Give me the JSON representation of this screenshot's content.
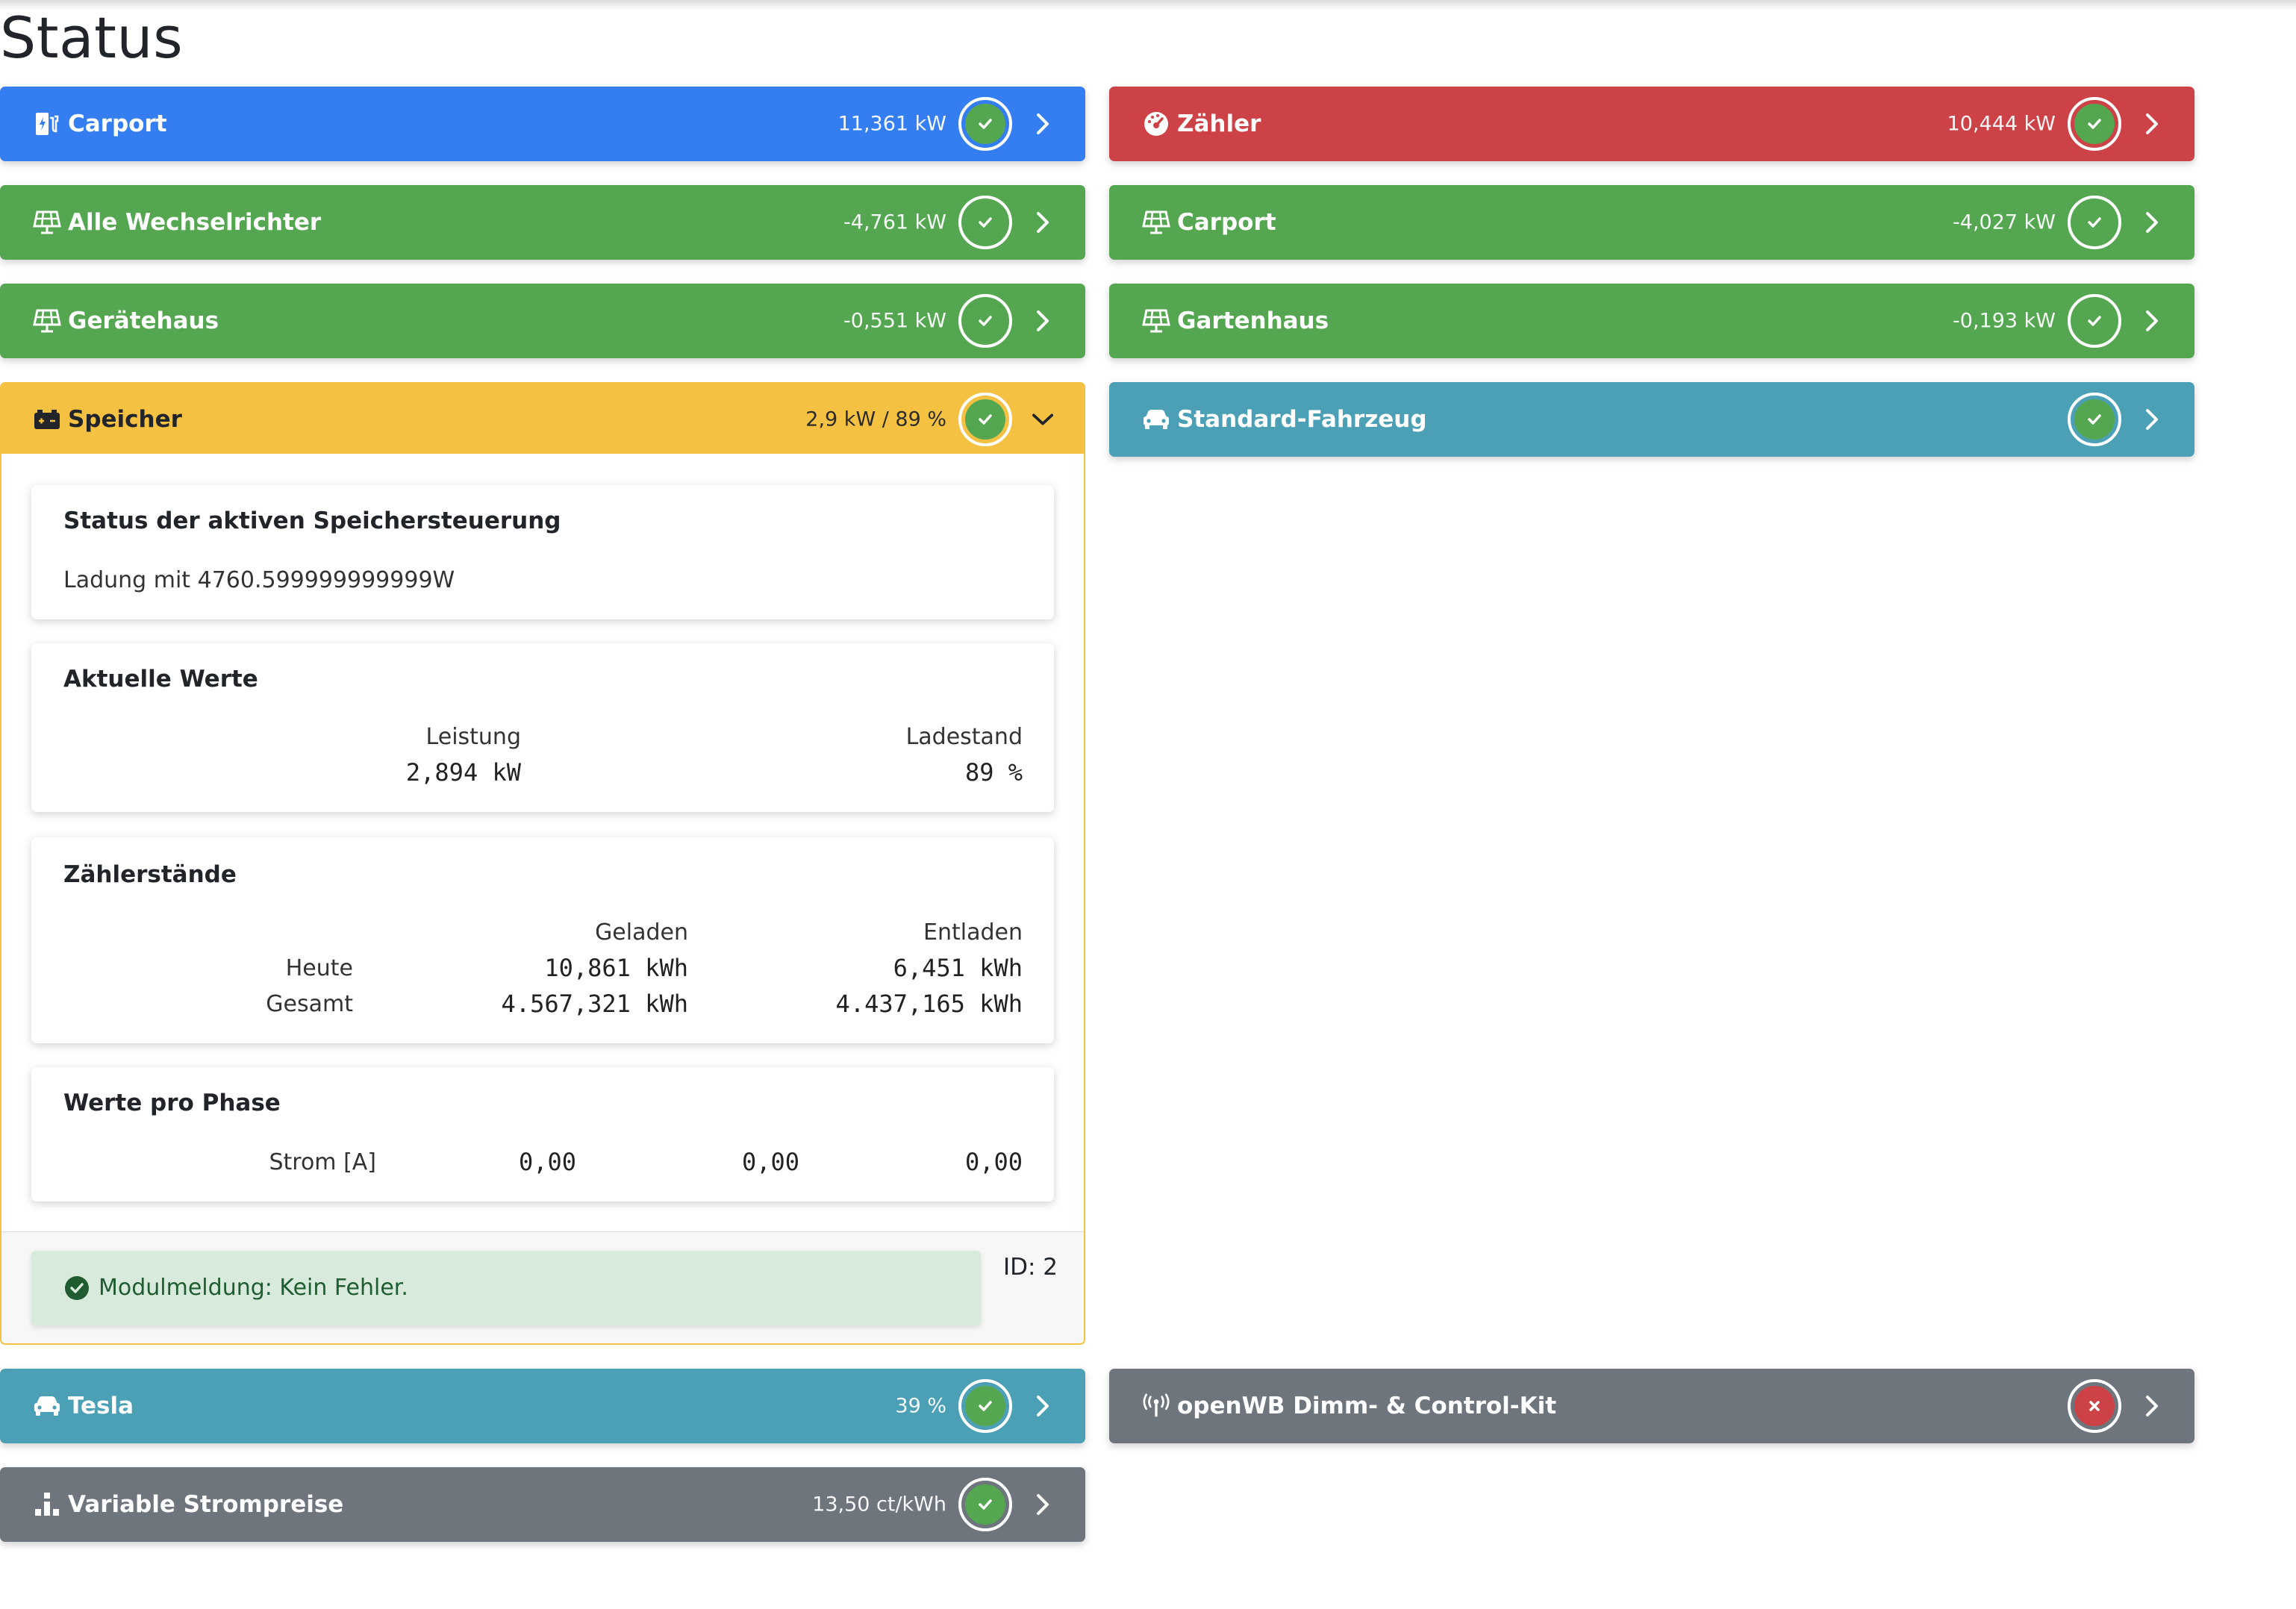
{
  "page": {
    "title": "Status"
  },
  "cards": {
    "carport_cp": {
      "title": "Carport",
      "value": "11,361 kW",
      "icon": "charging-station-icon",
      "color": "#357ef2"
    },
    "zaehler": {
      "title": "Zähler",
      "value": "10,444 kW",
      "icon": "gauge-icon",
      "color": "#cd4247"
    },
    "alle_wr": {
      "title": "Alle Wechselrichter",
      "value": "-4,761 kW",
      "icon": "solar-panel-icon",
      "color": "#55a651"
    },
    "carport_pv": {
      "title": "Carport",
      "value": "-4,027 kW",
      "icon": "solar-panel-icon",
      "color": "#55a651"
    },
    "geraetehaus": {
      "title": "Gerätehaus",
      "value": "-0,551 kW",
      "icon": "solar-panel-icon",
      "color": "#55a651"
    },
    "gartenhaus": {
      "title": "Gartenhaus",
      "value": "-0,193 kW",
      "icon": "solar-panel-icon",
      "color": "#55a651"
    },
    "speicher": {
      "title": "Speicher",
      "value": "2,9 kW / 89 %",
      "icon": "battery-icon",
      "color": "#f5c143"
    },
    "standard_fahrzeug": {
      "title": "Standard-Fahrzeug",
      "value": "",
      "icon": "car-icon",
      "color": "#4ca0b6"
    },
    "tesla": {
      "title": "Tesla",
      "value": "39 %",
      "icon": "car-icon",
      "color": "#4ca0b6"
    },
    "dimm_kit": {
      "title": "openWB Dimm- & Control-Kit",
      "value": "",
      "icon": "antenna-icon",
      "color": "#6e757d",
      "status": "error"
    },
    "strompreise": {
      "title": "Variable Strompreise",
      "value": "13,50 ct/kWh",
      "icon": "price-chart-icon",
      "color": "#6e757d"
    }
  },
  "speicher_detail": {
    "control": {
      "title": "Status der aktiven Speichersteuerung",
      "text": "Ladung mit 4760.599999999999W"
    },
    "current": {
      "title": "Aktuelle Werte",
      "power_label": "Leistung",
      "power_value": "2,894 kW",
      "soc_label": "Ladestand",
      "soc_value": "89 %"
    },
    "counters": {
      "title": "Zählerstände",
      "col_charged": "Geladen",
      "col_discharged": "Entladen",
      "rows": [
        {
          "label": "Heute",
          "charged": "10,861 kWh",
          "discharged": "6,451 kWh"
        },
        {
          "label": "Gesamt",
          "charged": "4.567,321 kWh",
          "discharged": "4.437,165 kWh"
        }
      ]
    },
    "phases": {
      "title": "Werte pro Phase",
      "label": "Strom [A]",
      "values": [
        "0,00",
        "0,00",
        "0,00"
      ]
    },
    "message": "Modulmeldung: Kein Fehler.",
    "id_label": "ID: 2"
  },
  "colors": {
    "ok": "#55a651",
    "error": "#cd4247",
    "alert_bg": "#d8eadb"
  }
}
